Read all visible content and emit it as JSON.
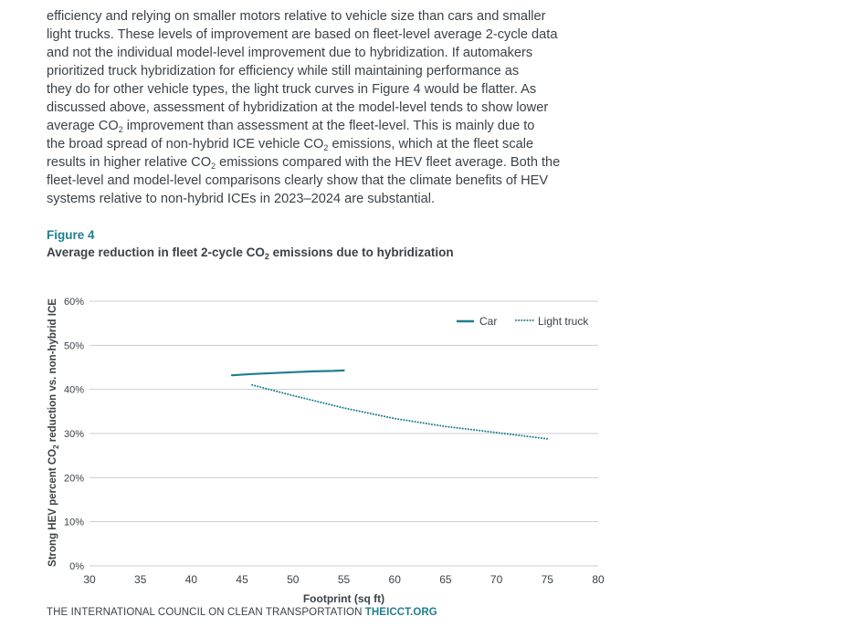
{
  "body_text": {
    "lines": [
      "efficiency and relying on smaller motors relative to vehicle size than cars and smaller",
      "light trucks. These levels of improvement are based on fleet-level average 2-cycle data",
      "and not the individual model-level improvement due to hybridization. If automakers",
      "prioritized truck hybridization for efficiency while still maintaining performance as",
      "they do for other vehicle types, the light truck curves in Figure 4 would be flatter. As",
      "discussed above, assessment of hybridization at the model-level tends to show lower",
      [
        "average CO",
        "2",
        " improvement than assessment at the fleet-level. This is mainly due to"
      ],
      [
        "the broad spread of non-hybrid ICE vehicle CO",
        "2",
        " emissions, which at the fleet scale"
      ],
      [
        "results in higher relative CO",
        "2",
        " emissions compared with the HEV fleet average. Both the"
      ],
      "fleet-level and model-level comparisons clearly show that the climate benefits of HEV",
      "systems relative to non-hybrid ICEs in 2023–2024 are substantial."
    ]
  },
  "figure": {
    "label": "Figure 4",
    "title_main": "Average reduction in fleet 2-cycle CO",
    "title_sub": "2",
    "title_rest": " emissions due to hybridization"
  },
  "colors": {
    "teal": "#1f7f8e",
    "grid": "#c9cdd1",
    "text": "#3b4249"
  },
  "chart_data": {
    "type": "line",
    "xlabel": "Footprint (sq ft)",
    "ylabel_parts": [
      "Strong HEV percent CO",
      "2",
      " reduction vs. non-hybrid ICE"
    ],
    "xlim": [
      30,
      80
    ],
    "ylim": [
      0,
      60
    ],
    "x_ticks": [
      "30",
      "35",
      "40",
      "45",
      "50",
      "55",
      "60",
      "65",
      "70",
      "75",
      "80"
    ],
    "y_ticks": [
      "0%",
      "10%",
      "20%",
      "30%",
      "40%",
      "50%",
      "60%"
    ],
    "legend": "top-right",
    "series": [
      {
        "name": "Car",
        "style": "solid",
        "x": [
          44,
          46,
          48,
          50,
          52,
          54,
          55
        ],
        "y": [
          43.2,
          43.5,
          43.7,
          43.9,
          44.1,
          44.2,
          44.3
        ]
      },
      {
        "name": "Light truck",
        "style": "dotted",
        "x": [
          46,
          50,
          55,
          60,
          65,
          70,
          75
        ],
        "y": [
          41.0,
          38.6,
          35.8,
          33.4,
          31.6,
          30.2,
          28.8
        ]
      }
    ]
  },
  "footer": {
    "org": "THE INTERNATIONAL COUNCIL ON CLEAN TRANSPORTATION ",
    "url": "THEICCT.ORG"
  }
}
